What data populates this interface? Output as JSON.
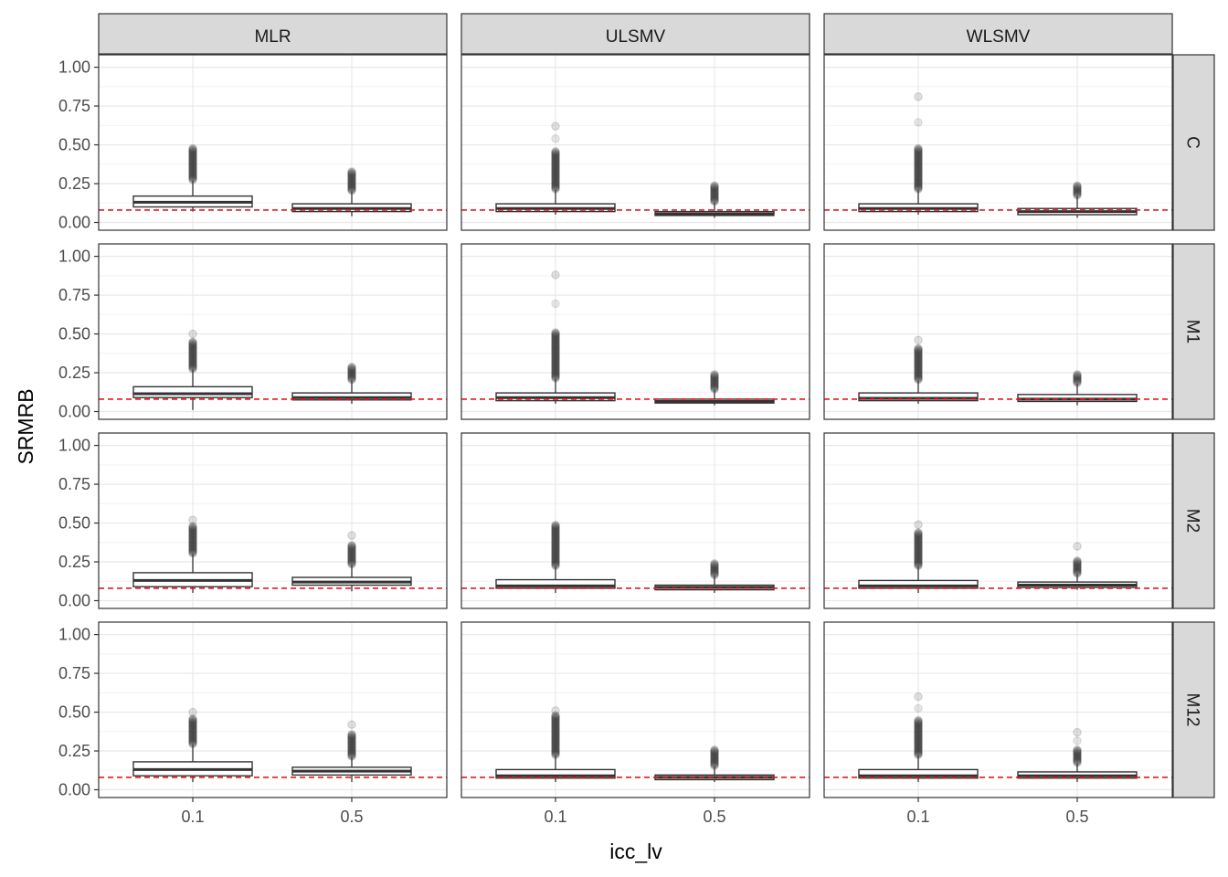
{
  "chart_data": {
    "type": "boxplot",
    "xlabel": "icc_lv",
    "ylabel": "SRMRB",
    "columns": [
      "MLR",
      "ULSMV",
      "WLSMV"
    ],
    "rows": [
      "C",
      "M1",
      "M2",
      "M12"
    ],
    "categories": [
      "0.1",
      "0.5"
    ],
    "yticks": [
      "0.00",
      "0.25",
      "0.50",
      "0.75",
      "1.00"
    ],
    "ylim": [
      -0.05,
      1.08
    ],
    "reference_line": {
      "y": 0.08,
      "style": "dashed",
      "color": "#e31a1c"
    },
    "grid": true,
    "panels": [
      {
        "row": "C",
        "column": "MLR",
        "boxes": [
          {
            "category": "0.1",
            "min": 0.07,
            "q1": 0.1,
            "median": 0.13,
            "q3": 0.17,
            "max": 0.27,
            "outliers_to": 0.48,
            "max_outlier": 0.48
          },
          {
            "category": "0.5",
            "min": 0.04,
            "q1": 0.07,
            "median": 0.09,
            "q3": 0.12,
            "max": 0.2,
            "outliers_to": 0.33,
            "max_outlier": 0.33
          }
        ]
      },
      {
        "row": "C",
        "column": "ULSMV",
        "boxes": [
          {
            "category": "0.1",
            "min": 0.05,
            "q1": 0.07,
            "median": 0.09,
            "q3": 0.12,
            "max": 0.21,
            "outliers_to": 0.46,
            "max_outlier": 0.62
          },
          {
            "category": "0.5",
            "min": 0.03,
            "q1": 0.045,
            "median": 0.055,
            "q3": 0.07,
            "max": 0.13,
            "outliers_to": 0.24,
            "max_outlier": 0.24
          }
        ]
      },
      {
        "row": "C",
        "column": "WLSMV",
        "boxes": [
          {
            "category": "0.1",
            "min": 0.05,
            "q1": 0.07,
            "median": 0.09,
            "q3": 0.12,
            "max": 0.21,
            "outliers_to": 0.48,
            "max_outlier": 0.81
          },
          {
            "category": "0.5",
            "min": 0.03,
            "q1": 0.05,
            "median": 0.07,
            "q3": 0.09,
            "max": 0.17,
            "outliers_to": 0.24,
            "max_outlier": 0.24
          }
        ]
      },
      {
        "row": "M1",
        "column": "MLR",
        "boxes": [
          {
            "category": "0.1",
            "min": 0.01,
            "q1": 0.09,
            "median": 0.115,
            "q3": 0.16,
            "max": 0.27,
            "outliers_to": 0.45,
            "max_outlier": 0.5
          },
          {
            "category": "0.5",
            "min": 0.05,
            "q1": 0.075,
            "median": 0.09,
            "q3": 0.12,
            "max": 0.2,
            "outliers_to": 0.29,
            "max_outlier": 0.29
          }
        ]
      },
      {
        "row": "M1",
        "column": "ULSMV",
        "boxes": [
          {
            "category": "0.1",
            "min": 0.05,
            "q1": 0.07,
            "median": 0.09,
            "q3": 0.12,
            "max": 0.21,
            "outliers_to": 0.51,
            "max_outlier": 0.88
          },
          {
            "category": "0.5",
            "min": 0.04,
            "q1": 0.055,
            "median": 0.065,
            "q3": 0.08,
            "max": 0.14,
            "outliers_to": 0.24,
            "max_outlier": 0.24
          }
        ]
      },
      {
        "row": "M1",
        "column": "WLSMV",
        "boxes": [
          {
            "category": "0.1",
            "min": 0.05,
            "q1": 0.07,
            "median": 0.085,
            "q3": 0.12,
            "max": 0.2,
            "outliers_to": 0.41,
            "max_outlier": 0.46
          },
          {
            "category": "0.5",
            "min": 0.04,
            "q1": 0.065,
            "median": 0.08,
            "q3": 0.11,
            "max": 0.18,
            "outliers_to": 0.24,
            "max_outlier": 0.24
          }
        ]
      },
      {
        "row": "M2",
        "column": "MLR",
        "boxes": [
          {
            "category": "0.1",
            "min": 0.05,
            "q1": 0.09,
            "median": 0.13,
            "q3": 0.18,
            "max": 0.3,
            "outliers_to": 0.48,
            "max_outlier": 0.52
          },
          {
            "category": "0.5",
            "min": 0.06,
            "q1": 0.1,
            "median": 0.12,
            "q3": 0.15,
            "max": 0.23,
            "outliers_to": 0.36,
            "max_outlier": 0.42
          }
        ]
      },
      {
        "row": "M2",
        "column": "ULSMV",
        "boxes": [
          {
            "category": "0.1",
            "min": 0.05,
            "q1": 0.08,
            "median": 0.095,
            "q3": 0.135,
            "max": 0.22,
            "outliers_to": 0.49,
            "max_outlier": 0.49
          },
          {
            "category": "0.5",
            "min": 0.05,
            "q1": 0.07,
            "median": 0.085,
            "q3": 0.1,
            "max": 0.16,
            "outliers_to": 0.24,
            "max_outlier": 0.24
          }
        ]
      },
      {
        "row": "M2",
        "column": "WLSMV",
        "boxes": [
          {
            "category": "0.1",
            "min": 0.05,
            "q1": 0.08,
            "median": 0.095,
            "q3": 0.13,
            "max": 0.22,
            "outliers_to": 0.44,
            "max_outlier": 0.49
          },
          {
            "category": "0.5",
            "min": 0.07,
            "q1": 0.085,
            "median": 0.1,
            "q3": 0.12,
            "max": 0.17,
            "outliers_to": 0.26,
            "max_outlier": 0.35
          }
        ]
      },
      {
        "row": "M12",
        "column": "MLR",
        "boxes": [
          {
            "category": "0.1",
            "min": 0.05,
            "q1": 0.09,
            "median": 0.13,
            "q3": 0.18,
            "max": 0.29,
            "outliers_to": 0.46,
            "max_outlier": 0.5
          },
          {
            "category": "0.5",
            "min": 0.05,
            "q1": 0.095,
            "median": 0.12,
            "q3": 0.145,
            "max": 0.21,
            "outliers_to": 0.36,
            "max_outlier": 0.42
          }
        ]
      },
      {
        "row": "M12",
        "column": "ULSMV",
        "boxes": [
          {
            "category": "0.1",
            "min": 0.05,
            "q1": 0.075,
            "median": 0.09,
            "q3": 0.13,
            "max": 0.22,
            "outliers_to": 0.48,
            "max_outlier": 0.51
          },
          {
            "category": "0.5",
            "min": 0.05,
            "q1": 0.065,
            "median": 0.08,
            "q3": 0.095,
            "max": 0.15,
            "outliers_to": 0.26,
            "max_outlier": 0.26
          }
        ]
      },
      {
        "row": "M12",
        "column": "WLSMV",
        "boxes": [
          {
            "category": "0.1",
            "min": 0.05,
            "q1": 0.075,
            "median": 0.09,
            "q3": 0.13,
            "max": 0.22,
            "outliers_to": 0.45,
            "max_outlier": 0.6
          },
          {
            "category": "0.5",
            "min": 0.05,
            "q1": 0.075,
            "median": 0.09,
            "q3": 0.115,
            "max": 0.17,
            "outliers_to": 0.26,
            "max_outlier": 0.37
          }
        ]
      }
    ]
  }
}
